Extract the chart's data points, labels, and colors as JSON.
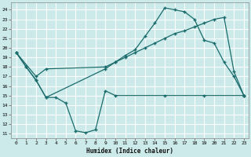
{
  "xlabel": "Humidex (Indice chaleur)",
  "bg_color": "#cceaea",
  "grid_color": "#ffffff",
  "line_color": "#1a6b6b",
  "xlim": [
    -0.5,
    23.5
  ],
  "ylim": [
    10.5,
    24.8
  ],
  "xticks": [
    0,
    1,
    2,
    3,
    4,
    5,
    6,
    7,
    8,
    9,
    10,
    11,
    12,
    13,
    14,
    15,
    16,
    17,
    18,
    19,
    20,
    21,
    22,
    23
  ],
  "yticks": [
    11,
    12,
    13,
    14,
    15,
    16,
    17,
    18,
    19,
    20,
    21,
    22,
    23,
    24
  ],
  "line1_x": [
    0,
    1,
    2,
    3,
    9,
    10,
    11,
    12,
    13,
    14,
    15,
    16,
    17,
    18,
    19,
    20,
    21,
    22,
    23
  ],
  "line1_y": [
    19.5,
    18.0,
    16.6,
    14.8,
    17.8,
    18.5,
    19.2,
    19.8,
    21.2,
    22.6,
    24.2,
    24.0,
    23.8,
    23.0,
    20.8,
    20.5,
    18.5,
    17.0,
    15.0
  ],
  "line2_x": [
    0,
    1,
    2,
    3,
    4,
    5,
    6,
    7,
    8,
    9,
    10,
    15,
    19,
    23
  ],
  "line2_y": [
    19.5,
    18.0,
    16.6,
    14.8,
    14.8,
    14.2,
    11.3,
    11.1,
    11.4,
    15.5,
    15.0,
    15.0,
    15.0,
    15.0
  ],
  "line3_x": [
    0,
    2,
    3,
    9,
    10,
    11,
    12,
    13,
    14,
    15,
    16,
    17,
    18,
    19,
    20,
    21,
    22,
    23
  ],
  "line3_y": [
    19.5,
    17.0,
    17.8,
    18.0,
    18.5,
    19.0,
    19.5,
    20.0,
    20.5,
    21.0,
    21.5,
    21.8,
    22.2,
    22.6,
    23.0,
    23.2,
    17.5,
    15.0
  ]
}
